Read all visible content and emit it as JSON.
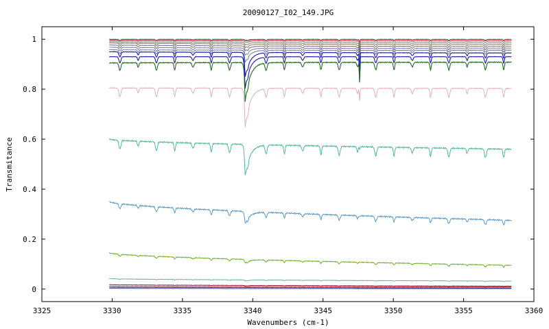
{
  "chart_data": {
    "type": "line",
    "title": "20090127_I02_149.JPG",
    "xlabel": "Wavenumbers (cm-1)",
    "ylabel": "Transmitance",
    "xlim": [
      3325,
      3360
    ],
    "ylim": [
      -0.05,
      1.05
    ],
    "xticks": [
      3325,
      3330,
      3335,
      3340,
      3345,
      3350,
      3355,
      3360
    ],
    "yticks": [
      0,
      0.2,
      0.4,
      0.6,
      0.8,
      1
    ],
    "ytick_labels": [
      "0",
      "0.2",
      "0.4",
      "0.6",
      "0.8",
      "1"
    ],
    "grid": false,
    "legend": "none",
    "x_range": [
      3329.8,
      3358.4
    ],
    "series": [
      {
        "color": "#2e8b57",
        "start": 1.0,
        "end": 1.0,
        "line_depth": 0.004,
        "peak_depth": 0.004,
        "sharp_depth": 0.01,
        "noise": 0.001
      },
      {
        "color": "#cc3333",
        "start": 0.998,
        "end": 0.997,
        "line_depth": 0.004,
        "peak_depth": 0.004,
        "sharp_depth": 0.01,
        "noise": 0.001
      },
      {
        "color": "#996666",
        "start": 0.995,
        "end": 0.992,
        "line_depth": 0.006,
        "peak_depth": 0.006,
        "sharp_depth": 0.015,
        "noise": 0.001
      },
      {
        "color": "#777777",
        "start": 0.99,
        "end": 0.985,
        "line_depth": 0.008,
        "peak_depth": 0.01,
        "sharp_depth": 0.02,
        "noise": 0.001
      },
      {
        "color": "#8b6f4e",
        "start": 0.985,
        "end": 0.978,
        "line_depth": 0.01,
        "peak_depth": 0.015,
        "sharp_depth": 0.025,
        "noise": 0.001
      },
      {
        "color": "#556b7a",
        "start": 0.977,
        "end": 0.97,
        "line_depth": 0.012,
        "peak_depth": 0.02,
        "sharp_depth": 0.03,
        "noise": 0.001
      },
      {
        "color": "#8866aa",
        "start": 0.968,
        "end": 0.962,
        "line_depth": 0.014,
        "peak_depth": 0.03,
        "sharp_depth": 0.04,
        "noise": 0.001
      },
      {
        "color": "#5a7a8a",
        "start": 0.958,
        "end": 0.955,
        "line_depth": 0.016,
        "peak_depth": 0.05,
        "sharp_depth": 0.05,
        "noise": 0.001
      },
      {
        "color": "#1a1aaa",
        "start": 0.95,
        "end": 0.945,
        "line_depth": 0.02,
        "peak_depth": 0.1,
        "sharp_depth": 0.09,
        "noise": 0.001
      },
      {
        "color": "#1a1aaa",
        "start": 0.93,
        "end": 0.93,
        "line_depth": 0.025,
        "peak_depth": 0.13,
        "sharp_depth": 0.1,
        "noise": 0.001
      },
      {
        "color": "#1f6b1f",
        "start": 0.905,
        "end": 0.908,
        "line_depth": 0.03,
        "peak_depth": 0.16,
        "sharp_depth": 0.08,
        "noise": 0.002
      },
      {
        "color": "#e0a8b8",
        "start": 0.805,
        "end": 0.803,
        "line_depth": 0.035,
        "peak_depth": 0.16,
        "sharp_depth": 0.05,
        "noise": 0.002
      },
      {
        "color": "#3cb48a",
        "start": 0.6,
        "end": 0.56,
        "line_depth": 0.035,
        "peak_depth": 0.13,
        "sharp_depth": 0.01,
        "noise": 0.003
      },
      {
        "color": "#4a8fc4",
        "start": 0.35,
        "end": 0.275,
        "line_depth": 0.02,
        "peak_depth": 0.05,
        "sharp_depth": 0.005,
        "noise": 0.003
      },
      {
        "color": "#6aa81a",
        "start": 0.145,
        "end": 0.095,
        "line_depth": 0.008,
        "peak_depth": 0.015,
        "sharp_depth": 0.0,
        "noise": 0.002
      },
      {
        "color": "#5fa79a",
        "start": 0.042,
        "end": 0.032,
        "line_depth": 0.002,
        "peak_depth": 0.004,
        "sharp_depth": 0.0,
        "noise": 0.001
      },
      {
        "color": "#8b1a4a",
        "start": 0.018,
        "end": 0.012,
        "line_depth": 0.001,
        "peak_depth": 0.002,
        "sharp_depth": 0.0,
        "noise": 0.001
      },
      {
        "color": "#cc2222",
        "start": 0.012,
        "end": 0.009,
        "line_depth": 0.001,
        "peak_depth": 0.001,
        "sharp_depth": 0.0,
        "noise": 0.001
      },
      {
        "color": "#3333aa",
        "start": 0.007,
        "end": 0.005,
        "line_depth": 0.0,
        "peak_depth": 0.0,
        "sharp_depth": 0.0,
        "noise": 0.001
      },
      {
        "color": "#2a2a7a",
        "start": 0.003,
        "end": 0.002,
        "line_depth": 0.0,
        "peak_depth": 0.0,
        "sharp_depth": 0.0,
        "noise": 0.0
      }
    ],
    "features": {
      "regular_lines_start": 3330.55,
      "regular_lines_spacing": 1.3,
      "strong_peak": 3339.45,
      "sharp_peak": 3347.6
    }
  }
}
